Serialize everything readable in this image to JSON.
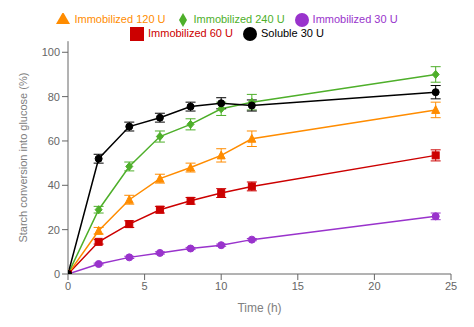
{
  "chart_data": {
    "type": "line",
    "xlabel": "Time (h)",
    "ylabel": "Starch conversion into glucose (%)",
    "x": [
      0,
      2,
      4,
      6,
      8,
      10,
      12,
      24
    ],
    "xlim": [
      0,
      25
    ],
    "ylim": [
      0,
      105
    ],
    "xticks": [
      0,
      5,
      10,
      15,
      20,
      25
    ],
    "yticks": [
      0,
      20,
      40,
      60,
      80,
      100
    ],
    "grid": false,
    "legend": "top",
    "series": [
      {
        "name": "Immobilized 30 U",
        "color": "#9933CC",
        "marker": "circle",
        "values": [
          0,
          4.5,
          7.5,
          9.5,
          11.5,
          13.0,
          15.5,
          26.0
        ],
        "yerr": [
          0,
          0.4,
          0.5,
          0.5,
          0.5,
          0.5,
          0.5,
          1.5
        ]
      },
      {
        "name": "Immobilized 60 U",
        "color": "#CC0000",
        "marker": "square",
        "values": [
          0,
          14.5,
          22.5,
          29.0,
          33.0,
          36.5,
          39.5,
          53.5
        ],
        "yerr": [
          0,
          1.0,
          1.5,
          1.5,
          1.5,
          2.0,
          2.0,
          2.5
        ]
      },
      {
        "name": "Immobilized 120 U",
        "color": "#FF8C00",
        "marker": "triangle",
        "values": [
          0,
          19.5,
          33.5,
          43.0,
          48.0,
          53.5,
          61.0,
          74.0
        ],
        "yerr": [
          0,
          1.5,
          2.0,
          2.0,
          2.0,
          3.0,
          3.5,
          3.5
        ]
      },
      {
        "name": "Immobilized 240 U",
        "color": "#4EAF2A",
        "marker": "diamond",
        "values": [
          0,
          29.0,
          48.5,
          62.0,
          67.5,
          74.5,
          77.5,
          90.0
        ],
        "yerr": [
          0,
          1.5,
          2.0,
          2.5,
          2.5,
          3.0,
          3.5,
          3.5
        ]
      },
      {
        "name": "Soluble 30 U",
        "color": "#000000",
        "marker": "circle",
        "values": [
          0,
          52.0,
          66.5,
          70.5,
          75.5,
          77.0,
          76.0,
          82.0
        ],
        "yerr": [
          0,
          2.0,
          2.0,
          2.0,
          2.0,
          2.5,
          2.5,
          3.0
        ]
      }
    ]
  }
}
